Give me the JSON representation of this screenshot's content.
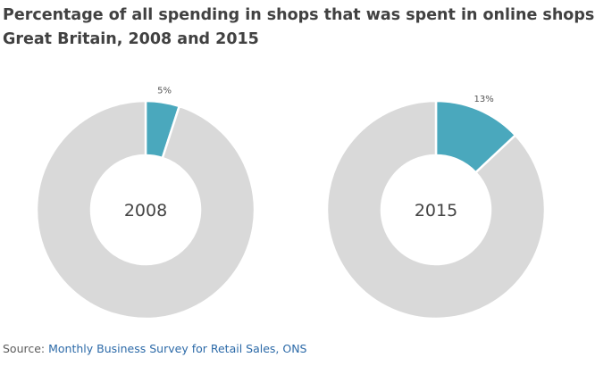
{
  "title": {
    "line1": "Percentage of all spending in shops that was spent in online shops,",
    "line2": "Great Britain, 2008 and 2015"
  },
  "colors": {
    "online": "#4aa8bd",
    "other": "#d9d9d9",
    "text": "#414141",
    "link": "#2c6aa8"
  },
  "chart_data": [
    {
      "type": "pie",
      "center_label": "2008",
      "slices": [
        {
          "value": 5,
          "label": "5%",
          "color": "#4aa8bd"
        },
        {
          "value": 95,
          "label": "",
          "color": "#d9d9d9"
        }
      ]
    },
    {
      "type": "pie",
      "center_label": "2015",
      "slices": [
        {
          "value": 13,
          "label": "13%",
          "color": "#4aa8bd"
        },
        {
          "value": 87,
          "label": "",
          "color": "#d9d9d9"
        }
      ]
    }
  ],
  "source": {
    "prefix": "Source: ",
    "link_text": "Monthly Business Survey for Retail Sales, ONS"
  }
}
